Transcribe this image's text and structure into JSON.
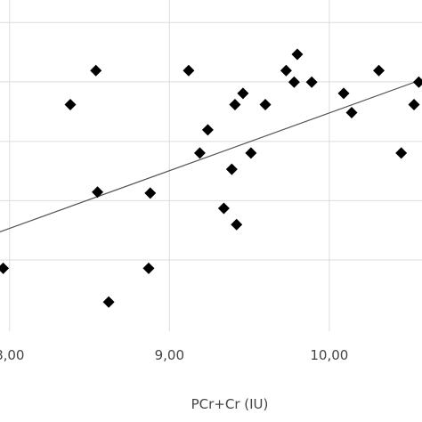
{
  "chart_data": {
    "type": "scatter",
    "xlabel": "PCr+Cr (IU)",
    "ylabel": "",
    "title": "",
    "x_tick_labels": [
      "8,00",
      "9,00",
      "10,00"
    ],
    "x_ticks": [
      8.0,
      9.0,
      10.0
    ],
    "xlim": [
      7.94,
      10.58
    ],
    "ylim": [
      0.0,
      1.0
    ],
    "grid": true,
    "legend": "none",
    "marker": "diamond",
    "marker_color": "#000000",
    "trendline": {
      "type": "linear",
      "color": "#555555",
      "x": [
        7.94,
        10.58
      ],
      "y": [
        0.3,
        0.76
      ]
    },
    "points": [
      {
        "x": 7.96,
        "y": 0.19
      },
      {
        "x": 8.38,
        "y": 0.684
      },
      {
        "x": 8.54,
        "y": 0.787
      },
      {
        "x": 8.55,
        "y": 0.42
      },
      {
        "x": 8.62,
        "y": 0.088
      },
      {
        "x": 8.87,
        "y": 0.19
      },
      {
        "x": 8.88,
        "y": 0.417
      },
      {
        "x": 9.12,
        "y": 0.787
      },
      {
        "x": 9.19,
        "y": 0.538
      },
      {
        "x": 9.24,
        "y": 0.608
      },
      {
        "x": 9.34,
        "y": 0.371
      },
      {
        "x": 9.39,
        "y": 0.489
      },
      {
        "x": 9.41,
        "y": 0.684
      },
      {
        "x": 9.42,
        "y": 0.322
      },
      {
        "x": 9.46,
        "y": 0.718
      },
      {
        "x": 9.51,
        "y": 0.538
      },
      {
        "x": 9.6,
        "y": 0.684
      },
      {
        "x": 9.73,
        "y": 0.787
      },
      {
        "x": 9.78,
        "y": 0.752
      },
      {
        "x": 9.8,
        "y": 0.836
      },
      {
        "x": 9.89,
        "y": 0.752
      },
      {
        "x": 10.09,
        "y": 0.718
      },
      {
        "x": 10.14,
        "y": 0.66
      },
      {
        "x": 10.31,
        "y": 0.787
      },
      {
        "x": 10.45,
        "y": 0.538
      },
      {
        "x": 10.53,
        "y": 0.684
      },
      {
        "x": 10.56,
        "y": 0.752
      }
    ]
  }
}
